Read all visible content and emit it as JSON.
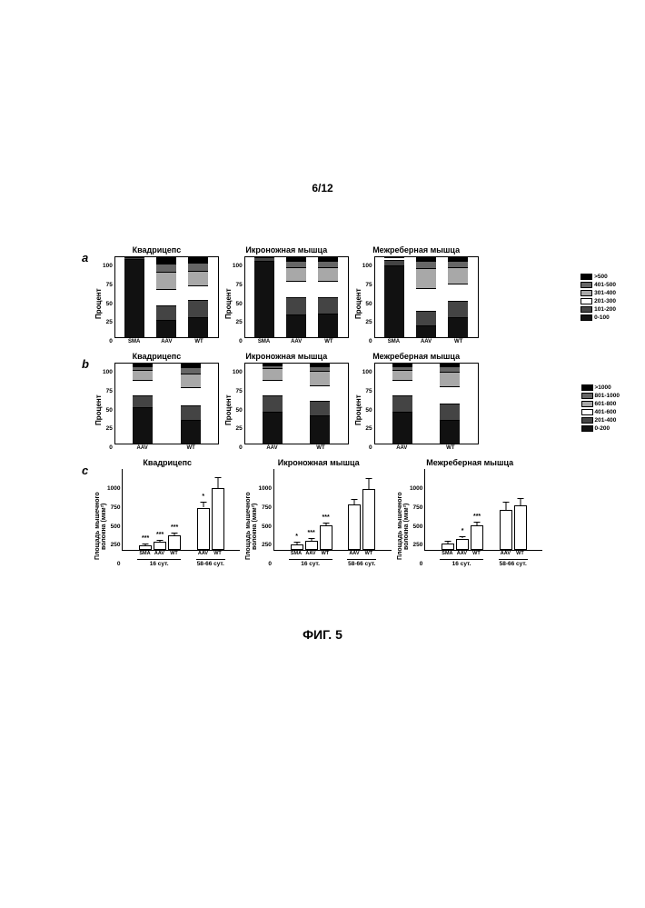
{
  "page_number": "6/12",
  "figure_caption": "ФИГ. 5",
  "muscles": [
    "Квадрицепс",
    "Икроножная мышца",
    "Межреберная мышца"
  ],
  "row_labels": [
    "a",
    "b",
    "c"
  ],
  "row_a": {
    "yaxis_label": "Процент",
    "ylim": [
      0,
      100
    ],
    "yticks": [
      0,
      25,
      50,
      75,
      100
    ],
    "x_categories": [
      "SMA",
      "AAV",
      "WT"
    ],
    "legend": [
      ">500",
      "401-500",
      "301-400",
      "201-300",
      "101-200",
      "0-100"
    ],
    "legend_colors": [
      "#000000",
      "#666666",
      "#a8a8a8",
      "#ffffff",
      "#444444",
      "#111111"
    ],
    "panels": [
      {
        "bars": [
          {
            "segments": [
              98,
              2,
              0,
              0,
              0,
              0
            ]
          },
          {
            "segments": [
              22,
              18,
              20,
              22,
              10,
              8
            ]
          },
          {
            "segments": [
              25,
              22,
              18,
              18,
              10,
              7
            ]
          }
        ]
      },
      {
        "bars": [
          {
            "segments": [
              95,
              5,
              0,
              0,
              0,
              0
            ]
          },
          {
            "segments": [
              28,
              22,
              20,
              18,
              8,
              4
            ]
          },
          {
            "segments": [
              30,
              20,
              20,
              18,
              8,
              4
            ]
          }
        ]
      },
      {
        "bars": [
          {
            "segments": [
              90,
              7,
              3,
              0,
              0,
              0
            ]
          },
          {
            "segments": [
              15,
              18,
              28,
              25,
              10,
              4
            ]
          },
          {
            "segments": [
              25,
              20,
              22,
              20,
              9,
              4
            ]
          }
        ]
      }
    ],
    "segment_colors": [
      "#111111",
      "#444444",
      "#ffffff",
      "#a8a8a8",
      "#666666",
      "#000000"
    ]
  },
  "row_b": {
    "yaxis_label": "Процент",
    "ylim": [
      0,
      100
    ],
    "yticks": [
      0,
      25,
      50,
      75,
      100
    ],
    "x_categories": [
      "AAV",
      "WT"
    ],
    "legend": [
      ">1000",
      "801-1000",
      "601-800",
      "401-600",
      "201-400",
      "0-200"
    ],
    "legend_colors": [
      "#000000",
      "#666666",
      "#a8a8a8",
      "#ffffff",
      "#444444",
      "#111111"
    ],
    "panels": [
      {
        "bars": [
          {
            "segments": [
              45,
              15,
              20,
              12,
              5,
              3
            ]
          },
          {
            "segments": [
              30,
              18,
              22,
              18,
              8,
              4
            ]
          }
        ]
      },
      {
        "bars": [
          {
            "segments": [
              40,
              20,
              20,
              14,
              4,
              2
            ]
          },
          {
            "segments": [
              35,
              18,
              20,
              18,
              6,
              3
            ]
          }
        ]
      },
      {
        "bars": [
          {
            "segments": [
              40,
              20,
              20,
              12,
              5,
              3
            ]
          },
          {
            "segments": [
              30,
              20,
              22,
              18,
              7,
              3
            ]
          }
        ]
      }
    ],
    "segment_colors": [
      "#111111",
      "#444444",
      "#ffffff",
      "#a8a8a8",
      "#666666",
      "#000000"
    ]
  },
  "row_c": {
    "yaxis_label": "Площадь мышечного волокна (мкм²)",
    "ylim": [
      0,
      1000
    ],
    "yticks": [
      0,
      250,
      500,
      750,
      1000
    ],
    "groups": [
      {
        "label": "16 сут.",
        "cats": [
          "SMA",
          "AAV",
          "WT"
        ]
      },
      {
        "label": "58-66 сут.",
        "cats": [
          "AAV",
          "WT"
        ]
      }
    ],
    "panels": [
      {
        "bars": [
          [
            60,
            100,
            180,
            520,
            760
          ]
        ],
        "errors": [
          10,
          15,
          20,
          60,
          120
        ],
        "sig": [
          "***",
          "***",
          "***",
          "*"
        ],
        "sig_label_top": "*"
      },
      {
        "bars": [
          [
            70,
            110,
            300,
            560,
            750
          ]
        ],
        "errors": [
          15,
          20,
          25,
          55,
          120
        ],
        "sig": [
          "*",
          "***",
          "***",
          ""
        ],
        "sig_label_top": ""
      },
      {
        "bars": [
          [
            80,
            140,
            300,
            490,
            550
          ]
        ],
        "errors": [
          15,
          20,
          30,
          90,
          75
        ],
        "sig": [
          "",
          "*",
          "***",
          ""
        ],
        "sig_label_top": ""
      }
    ]
  },
  "colors": {
    "background": "#ffffff",
    "axis": "#000000",
    "bar_fill": "#ffffff",
    "bar_border": "#000000"
  },
  "sizes": {
    "stacked_chart_w": 115,
    "stacked_chart_h": 90,
    "barc_chart_w": 130,
    "barc_chart_h": 90,
    "title_fontsize": 9,
    "tick_fontsize": 6.5
  }
}
